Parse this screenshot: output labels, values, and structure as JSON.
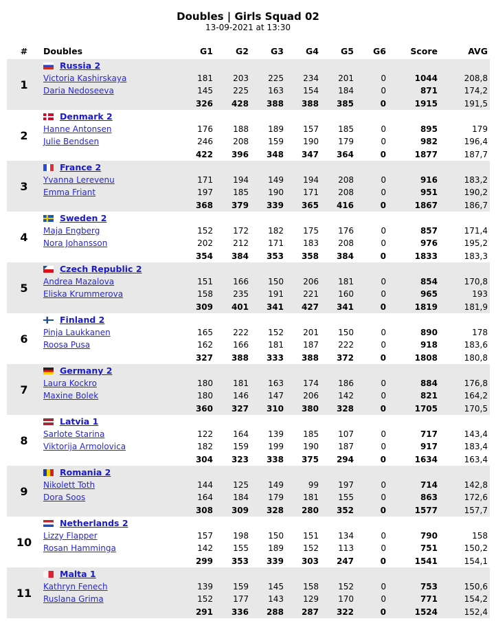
{
  "header": {
    "title": "Doubles | Girls Squad 02",
    "date": "13-09-2021 at 13:30"
  },
  "columns": [
    "#",
    "Doubles",
    "G1",
    "G2",
    "G3",
    "G4",
    "G5",
    "G6",
    "Score",
    "AVG"
  ],
  "teams": [
    {
      "rank": "1",
      "team": "Russia 2",
      "flag": "russia-flag-icon",
      "players": [
        {
          "name": "Victoria Kashirskaya",
          "games": [
            "181",
            "203",
            "225",
            "234",
            "201",
            "0"
          ],
          "score": "1044",
          "avg": "208,8"
        },
        {
          "name": "Daria Nedoseeva",
          "games": [
            "145",
            "225",
            "163",
            "154",
            "184",
            "0"
          ],
          "score": "871",
          "avg": "174,2"
        }
      ],
      "total": {
        "games": [
          "326",
          "428",
          "388",
          "388",
          "385",
          "0"
        ],
        "score": "1915",
        "avg": "191,5"
      }
    },
    {
      "rank": "2",
      "team": "Denmark 2",
      "flag": "denmark-flag-icon",
      "players": [
        {
          "name": "Hanne Antonsen",
          "games": [
            "176",
            "188",
            "189",
            "157",
            "185",
            "0"
          ],
          "score": "895",
          "avg": "179"
        },
        {
          "name": "Julie Bendsen",
          "games": [
            "246",
            "208",
            "159",
            "190",
            "179",
            "0"
          ],
          "score": "982",
          "avg": "196,4"
        }
      ],
      "total": {
        "games": [
          "422",
          "396",
          "348",
          "347",
          "364",
          "0"
        ],
        "score": "1877",
        "avg": "187,7"
      }
    },
    {
      "rank": "3",
      "team": "France 2",
      "flag": "france-flag-icon",
      "players": [
        {
          "name": "Yvanna Lerevenu",
          "games": [
            "171",
            "194",
            "149",
            "194",
            "208",
            "0"
          ],
          "score": "916",
          "avg": "183,2"
        },
        {
          "name": "Emma Friant",
          "games": [
            "197",
            "185",
            "190",
            "171",
            "208",
            "0"
          ],
          "score": "951",
          "avg": "190,2"
        }
      ],
      "total": {
        "games": [
          "368",
          "379",
          "339",
          "365",
          "416",
          "0"
        ],
        "score": "1867",
        "avg": "186,7"
      }
    },
    {
      "rank": "4",
      "team": "Sweden 2",
      "flag": "sweden-flag-icon",
      "players": [
        {
          "name": "Maja Engberg",
          "games": [
            "152",
            "172",
            "182",
            "175",
            "176",
            "0"
          ],
          "score": "857",
          "avg": "171,4"
        },
        {
          "name": "Nora Johansson",
          "games": [
            "202",
            "212",
            "171",
            "183",
            "208",
            "0"
          ],
          "score": "976",
          "avg": "195,2"
        }
      ],
      "total": {
        "games": [
          "354",
          "384",
          "353",
          "358",
          "384",
          "0"
        ],
        "score": "1833",
        "avg": "183,3"
      }
    },
    {
      "rank": "5",
      "team": "Czech Republic 2",
      "flag": "czech-flag-icon",
      "players": [
        {
          "name": "Andrea Mazalova",
          "games": [
            "151",
            "166",
            "150",
            "206",
            "181",
            "0"
          ],
          "score": "854",
          "avg": "170,8"
        },
        {
          "name": "Eliska Krummerova",
          "games": [
            "158",
            "235",
            "191",
            "221",
            "160",
            "0"
          ],
          "score": "965",
          "avg": "193"
        }
      ],
      "total": {
        "games": [
          "309",
          "401",
          "341",
          "427",
          "341",
          "0"
        ],
        "score": "1819",
        "avg": "181,9"
      }
    },
    {
      "rank": "6",
      "team": "Finland 2",
      "flag": "finland-flag-icon",
      "players": [
        {
          "name": "Pinja Laukkanen",
          "games": [
            "165",
            "222",
            "152",
            "201",
            "150",
            "0"
          ],
          "score": "890",
          "avg": "178"
        },
        {
          "name": "Roosa Pusa",
          "games": [
            "162",
            "166",
            "181",
            "187",
            "222",
            "0"
          ],
          "score": "918",
          "avg": "183,6"
        }
      ],
      "total": {
        "games": [
          "327",
          "388",
          "333",
          "388",
          "372",
          "0"
        ],
        "score": "1808",
        "avg": "180,8"
      }
    },
    {
      "rank": "7",
      "team": "Germany 2",
      "flag": "germany-flag-icon",
      "players": [
        {
          "name": "Laura Kockro",
          "games": [
            "180",
            "181",
            "163",
            "174",
            "186",
            "0"
          ],
          "score": "884",
          "avg": "176,8"
        },
        {
          "name": "Maxine Bolek",
          "games": [
            "180",
            "146",
            "147",
            "206",
            "142",
            "0"
          ],
          "score": "821",
          "avg": "164,2"
        }
      ],
      "total": {
        "games": [
          "360",
          "327",
          "310",
          "380",
          "328",
          "0"
        ],
        "score": "1705",
        "avg": "170,5"
      }
    },
    {
      "rank": "8",
      "team": "Latvia 1",
      "flag": "latvia-flag-icon",
      "players": [
        {
          "name": "Sarlote Starina",
          "games": [
            "122",
            "164",
            "139",
            "185",
            "107",
            "0"
          ],
          "score": "717",
          "avg": "143,4"
        },
        {
          "name": "Viktorija Armolovica",
          "games": [
            "182",
            "159",
            "199",
            "190",
            "187",
            "0"
          ],
          "score": "917",
          "avg": "183,4"
        }
      ],
      "total": {
        "games": [
          "304",
          "323",
          "338",
          "375",
          "294",
          "0"
        ],
        "score": "1634",
        "avg": "163,4"
      }
    },
    {
      "rank": "9",
      "team": "Romania 2",
      "flag": "romania-flag-icon",
      "players": [
        {
          "name": "Nikolett Toth",
          "games": [
            "144",
            "125",
            "149",
            "99",
            "197",
            "0"
          ],
          "score": "714",
          "avg": "142,8"
        },
        {
          "name": "Dora Soos",
          "games": [
            "164",
            "184",
            "179",
            "181",
            "155",
            "0"
          ],
          "score": "863",
          "avg": "172,6"
        }
      ],
      "total": {
        "games": [
          "308",
          "309",
          "328",
          "280",
          "352",
          "0"
        ],
        "score": "1577",
        "avg": "157,7"
      }
    },
    {
      "rank": "10",
      "team": "Netherlands 2",
      "flag": "netherlands-flag-icon",
      "players": [
        {
          "name": "Lizzy Flapper",
          "games": [
            "157",
            "198",
            "150",
            "151",
            "134",
            "0"
          ],
          "score": "790",
          "avg": "158"
        },
        {
          "name": "Rosan Hamminga",
          "games": [
            "142",
            "155",
            "189",
            "152",
            "113",
            "0"
          ],
          "score": "751",
          "avg": "150,2"
        }
      ],
      "total": {
        "games": [
          "299",
          "353",
          "339",
          "303",
          "247",
          "0"
        ],
        "score": "1541",
        "avg": "154,1"
      }
    },
    {
      "rank": "11",
      "team": "Malta 1",
      "flag": "malta-flag-icon",
      "players": [
        {
          "name": "Kathryn Fenech",
          "games": [
            "139",
            "159",
            "145",
            "158",
            "152",
            "0"
          ],
          "score": "753",
          "avg": "150,6"
        },
        {
          "name": "Ruslana Grima",
          "games": [
            "152",
            "177",
            "143",
            "129",
            "170",
            "0"
          ],
          "score": "771",
          "avg": "154,2"
        }
      ],
      "total": {
        "games": [
          "291",
          "336",
          "288",
          "287",
          "322",
          "0"
        ],
        "score": "1524",
        "avg": "152,4"
      }
    }
  ]
}
